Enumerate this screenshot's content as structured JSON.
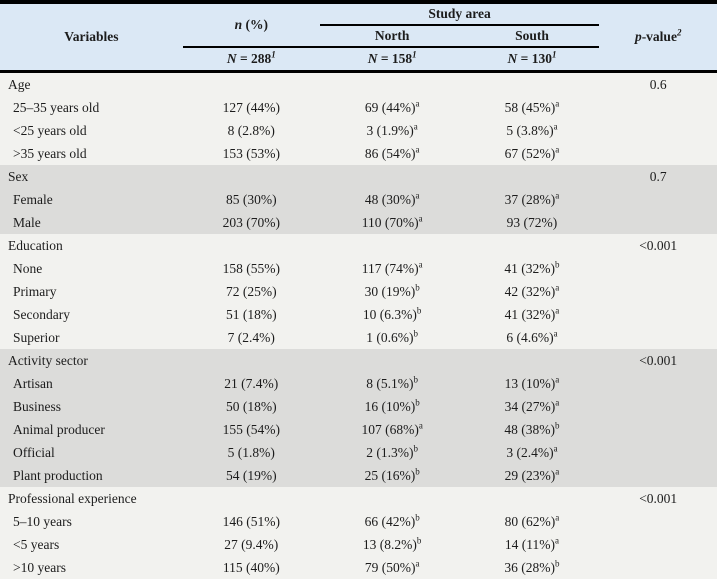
{
  "colors": {
    "header_bg": "#dbe8f5",
    "row_plain": "#f2f2ef",
    "row_shaded": "#dcdcda",
    "rule": "#000000",
    "text": "#1c1c1c"
  },
  "header": {
    "variables": "Variables",
    "n_col": {
      "italic": "n",
      "rest": " (%)"
    },
    "study_area": "Study area",
    "north": "North",
    "south": "South",
    "p_col": {
      "italic": "p",
      "rest": "-value",
      "sup": "2"
    },
    "totals": [
      {
        "italic": "N",
        "rest": " = 288",
        "sup": "1"
      },
      {
        "italic": "N",
        "rest": " = 158",
        "sup": "1"
      },
      {
        "italic": "N",
        "rest": " = 130",
        "sup": "1"
      }
    ]
  },
  "sections": [
    {
      "label": "Age",
      "p_value": "0.6",
      "shaded": false,
      "rows": [
        {
          "label": "25–35 years old",
          "overall": "127 (44%)",
          "north": "69 (44%)",
          "north_sup": "a",
          "south": "58 (45%)",
          "south_sup": "a"
        },
        {
          "label": "<25 years old",
          "overall": "8 (2.8%)",
          "north": "3 (1.9%)",
          "north_sup": "a",
          "south": "5 (3.8%)",
          "south_sup": "a"
        },
        {
          "label": ">35 years old",
          "overall": "153 (53%)",
          "north": "86 (54%)",
          "north_sup": "a",
          "south": "67 (52%)",
          "south_sup": "a"
        }
      ]
    },
    {
      "label": "Sex",
      "p_value": "0.7",
      "shaded": true,
      "rows": [
        {
          "label": "Female",
          "overall": "85 (30%)",
          "north": "48 (30%)",
          "north_sup": "a",
          "south": "37 (28%)",
          "south_sup": "a"
        },
        {
          "label": "Male",
          "overall": "203 (70%)",
          "north": "110 (70%)",
          "north_sup": "a",
          "south": "93 (72%)",
          "south_sup": ""
        }
      ]
    },
    {
      "label": "Education",
      "p_value": "<0.001",
      "shaded": false,
      "rows": [
        {
          "label": "None",
          "overall": "158 (55%)",
          "north": "117 (74%)",
          "north_sup": "a",
          "south": "41 (32%)",
          "south_sup": "b"
        },
        {
          "label": "Primary",
          "overall": "72 (25%)",
          "north": "30 (19%)",
          "north_sup": "b",
          "south": "42 (32%)",
          "south_sup": "a"
        },
        {
          "label": "Secondary",
          "overall": "51 (18%)",
          "north": "10 (6.3%)",
          "north_sup": "b",
          "south": "41 (32%)",
          "south_sup": "a"
        },
        {
          "label": "Superior",
          "overall": "7 (2.4%)",
          "north": "1 (0.6%)",
          "north_sup": "b",
          "south": "6 (4.6%)",
          "south_sup": "a"
        }
      ]
    },
    {
      "label": "Activity sector",
      "p_value": "<0.001",
      "shaded": true,
      "rows": [
        {
          "label": "Artisan",
          "overall": "21 (7.4%)",
          "north": "8 (5.1%)",
          "north_sup": "b",
          "south": "13 (10%)",
          "south_sup": "a"
        },
        {
          "label": "Business",
          "overall": "50 (18%)",
          "north": "16 (10%)",
          "north_sup": "b",
          "south": "34 (27%)",
          "south_sup": "a"
        },
        {
          "label": "Animal producer",
          "overall": "155 (54%)",
          "north": "107 (68%)",
          "north_sup": "a",
          "south": "48 (38%)",
          "south_sup": "b"
        },
        {
          "label": "Official",
          "overall": "5 (1.8%)",
          "north": "2 (1.3%)",
          "north_sup": "b",
          "south": "3 (2.4%)",
          "south_sup": "a"
        },
        {
          "label": "Plant production",
          "overall": "54 (19%)",
          "north": "25 (16%)",
          "north_sup": "b",
          "south": "29 (23%)",
          "south_sup": "a"
        }
      ]
    },
    {
      "label": "Professional experience",
      "p_value": "<0.001",
      "shaded": false,
      "rows": [
        {
          "label": "5–10 years",
          "overall": "146 (51%)",
          "north": "66 (42%)",
          "north_sup": "b",
          "south": "80 (62%)",
          "south_sup": "a"
        },
        {
          "label": "<5 years",
          "overall": "27 (9.4%)",
          "north": "13 (8.2%)",
          "north_sup": "b",
          "south": "14 (11%)",
          "south_sup": "a"
        },
        {
          "label": ">10 years",
          "overall": "115 (40%)",
          "north": "79 (50%)",
          "north_sup": "a",
          "south": "36 (28%)",
          "south_sup": "b"
        }
      ]
    }
  ]
}
